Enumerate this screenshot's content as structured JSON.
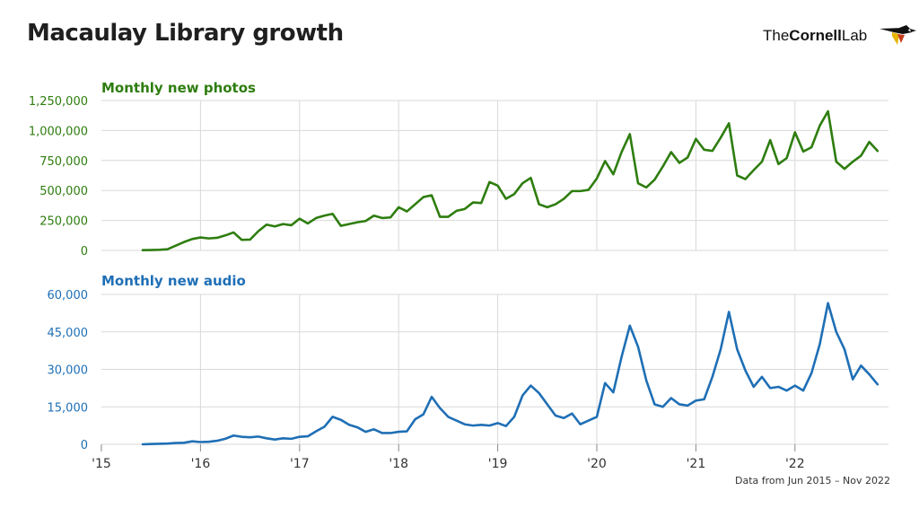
{
  "title": "Macaulay Library growth",
  "logo": {
    "part1": "The",
    "part2": "Cornell",
    "part3": "Lab"
  },
  "footnote": "Data from Jun 2015 – Nov 2022",
  "colors": {
    "photos": "#2e7d0f",
    "audio": "#1f6fb5",
    "grid": "#d9d9d9",
    "text": "#1f1f1f"
  },
  "chart_data": [
    {
      "type": "line",
      "title": "Monthly new photos",
      "x_start": "2015-06",
      "x_ticks": [
        "'15",
        "'16",
        "'17",
        "'18",
        "'19",
        "'20",
        "'21",
        "'22"
      ],
      "ylim": [
        0,
        1250000
      ],
      "y_ticks": [
        0,
        250000,
        500000,
        750000,
        1000000,
        1250000
      ],
      "y_tick_labels": [
        "0",
        "250,000",
        "500,000",
        "750,000",
        "1,000,000",
        "1,250,000"
      ],
      "grid": true,
      "values": [
        2000,
        3000,
        5000,
        10000,
        40000,
        70000,
        95000,
        108000,
        100000,
        105000,
        125000,
        150000,
        88000,
        90000,
        160000,
        215000,
        200000,
        220000,
        210000,
        265000,
        225000,
        270000,
        290000,
        305000,
        205000,
        220000,
        235000,
        245000,
        290000,
        270000,
        275000,
        360000,
        325000,
        385000,
        445000,
        460000,
        280000,
        280000,
        330000,
        345000,
        400000,
        395000,
        570000,
        540000,
        430000,
        470000,
        560000,
        605000,
        385000,
        360000,
        385000,
        430000,
        495000,
        495000,
        505000,
        600000,
        745000,
        635000,
        820000,
        970000,
        560000,
        525000,
        590000,
        700000,
        820000,
        730000,
        775000,
        930000,
        840000,
        830000,
        940000,
        1060000,
        625000,
        595000,
        670000,
        740000,
        920000,
        720000,
        770000,
        985000,
        825000,
        860000,
        1040000,
        1160000,
        740000,
        680000,
        740000,
        790000,
        905000,
        830000
      ]
    },
    {
      "type": "line",
      "title": "Monthly new audio",
      "x_start": "2015-06",
      "x_ticks": [
        "'15",
        "'16",
        "'17",
        "'18",
        "'19",
        "'20",
        "'21",
        "'22"
      ],
      "ylim": [
        0,
        60000
      ],
      "y_ticks": [
        0,
        15000,
        30000,
        45000,
        60000
      ],
      "y_tick_labels": [
        "0",
        "15,000",
        "30,000",
        "45,000",
        "60,000"
      ],
      "grid": true,
      "values": [
        0,
        100,
        200,
        300,
        500,
        600,
        1200,
        900,
        1000,
        1400,
        2200,
        3500,
        3000,
        2800,
        3100,
        2400,
        1900,
        2400,
        2200,
        3000,
        3200,
        5200,
        7000,
        11000,
        9800,
        7800,
        6800,
        5000,
        6000,
        4500,
        4500,
        5000,
        5200,
        10000,
        12000,
        19000,
        14500,
        11000,
        9500,
        8000,
        7500,
        7800,
        7500,
        8500,
        7300,
        11000,
        19500,
        23500,
        20500,
        16000,
        11500,
        10500,
        12300,
        8000,
        9500,
        11000,
        24500,
        20800,
        35000,
        47500,
        39000,
        25500,
        16000,
        15000,
        18500,
        16000,
        15500,
        17500,
        18000,
        27000,
        38000,
        53000,
        38000,
        29500,
        23000,
        27000,
        22500,
        23000,
        21500,
        23500,
        21500,
        28500,
        40000,
        56500,
        45000,
        38000,
        26000,
        31500,
        28000,
        24000
      ]
    }
  ]
}
